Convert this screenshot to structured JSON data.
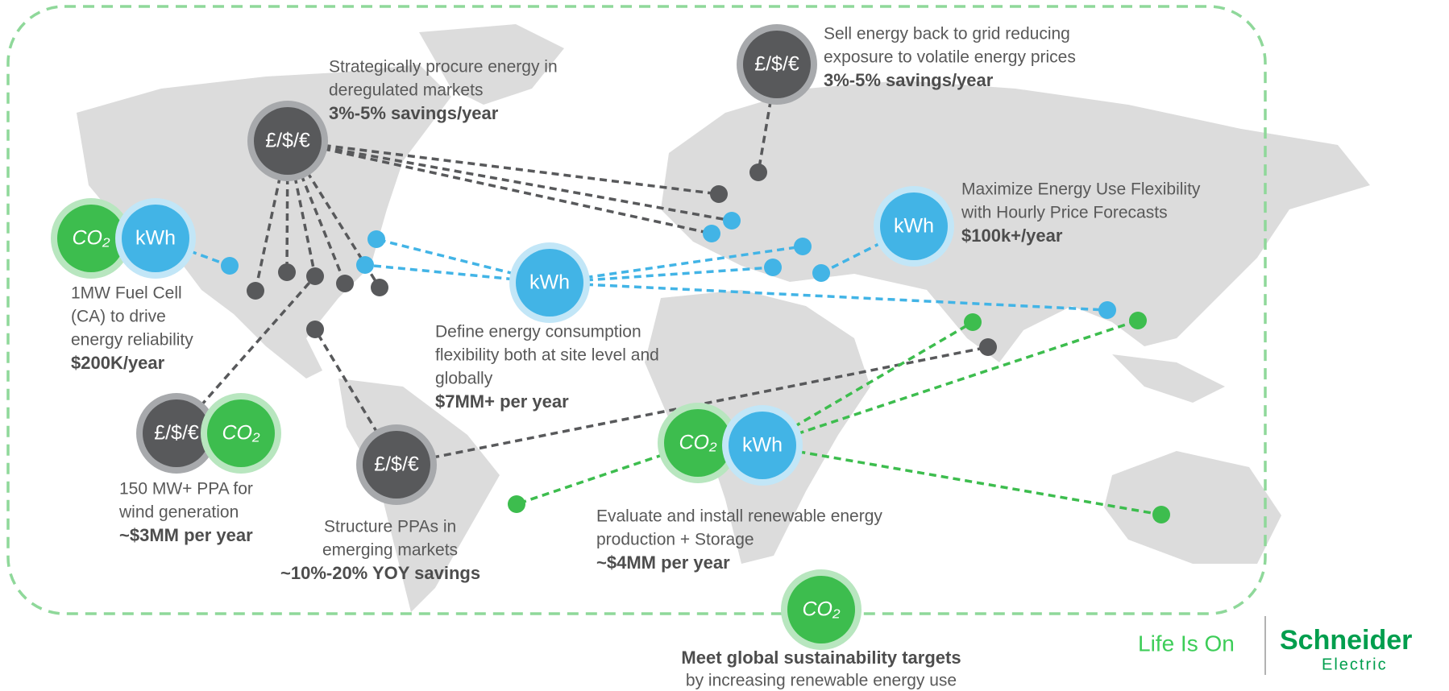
{
  "badges": [
    {
      "kind": "cost",
      "label": "£/$/€"
    },
    {
      "kind": "cost",
      "label": "£/$/€"
    },
    {
      "kind": "co2",
      "label": "CO₂"
    },
    {
      "kind": "kwh",
      "label": "kWh"
    },
    {
      "kind": "kwh",
      "label": "kWh"
    },
    {
      "kind": "kwh",
      "label": "kWh"
    },
    {
      "kind": "cost",
      "label": "£/$/€"
    },
    {
      "kind": "co2",
      "label": "CO₂"
    },
    {
      "kind": "cost",
      "label": "£/$/€"
    },
    {
      "kind": "co2",
      "label": "CO₂"
    },
    {
      "kind": "kwh",
      "label": "kWh"
    },
    {
      "kind": "co2",
      "label": "CO₂"
    }
  ],
  "callouts": [
    {
      "lines": [
        "Strategically procure energy in",
        "deregulated markets"
      ],
      "highlight": "3%-5% savings/year"
    },
    {
      "lines": [
        "Sell energy back to grid reducing",
        "exposure to volatile energy prices"
      ],
      "highlight": "3%-5% savings/year"
    },
    {
      "lines": [
        "Maximize Energy Use Flexibility",
        "with Hourly Price Forecasts"
      ],
      "highlight": "$100k+/year"
    },
    {
      "lines": [
        "1MW Fuel Cell",
        "(CA) to drive",
        "energy reliability"
      ],
      "highlight": "$200K/year"
    },
    {
      "lines": [
        "Define energy consumption",
        "flexibility both at site level and",
        "globally"
      ],
      "highlight": "$7MM+ per year"
    },
    {
      "lines": [
        "150 MW+ PPA for",
        "wind generation"
      ],
      "highlight": "~$3MM per year"
    },
    {
      "lines": [
        "Structure PPAs in",
        "emerging markets"
      ],
      "highlight": "~10%-20% YOY savings"
    },
    {
      "lines": [
        "Evaluate and install renewable energy",
        "production + Storage"
      ],
      "highlight": "~$4MM per year"
    }
  ],
  "footer": {
    "title": "Meet global sustainability targets",
    "subtitle": "by increasing renewable energy use"
  },
  "logo": {
    "tagline": "Life Is On",
    "brand": "Schneider",
    "sub": "Electric"
  }
}
